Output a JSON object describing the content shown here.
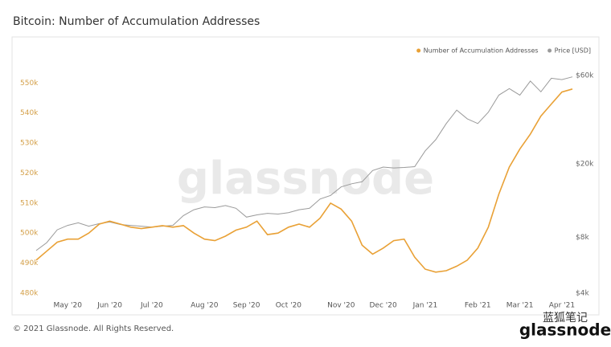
{
  "chart_data": {
    "type": "line",
    "title": "Bitcoin: Number of Accumulation Addresses",
    "footer": "© 2021 Glassnode. All Rights Reserved.",
    "watermark": "glassnode",
    "logo": "glassnode",
    "logo_caption": "蓝狐笔记",
    "legend_position": "top-right",
    "grid": false,
    "categories": [
      null,
      null,
      null,
      "May '20",
      null,
      null,
      null,
      "Jun '20",
      null,
      null,
      null,
      "Jul '20",
      null,
      null,
      null,
      null,
      "Aug '20",
      null,
      null,
      null,
      "Sep '20",
      null,
      null,
      null,
      "Oct '20",
      null,
      null,
      null,
      null,
      "Nov '20",
      null,
      null,
      null,
      "Dec '20",
      null,
      null,
      null,
      "Jan '21",
      null,
      null,
      null,
      null,
      "Feb '21",
      null,
      null,
      null,
      "Mar '21",
      null,
      null,
      null,
      "Apr '21",
      null
    ],
    "series": [
      {
        "name": "Number of Accumulation Addresses",
        "color": "#e9a136",
        "axis": "y",
        "values": [
          491000,
          494000,
          497000,
          498000,
          498000,
          500000,
          503000,
          504000,
          503000,
          502000,
          501500,
          502000,
          502500,
          502000,
          502500,
          500000,
          498000,
          497500,
          499000,
          501000,
          502000,
          504000,
          499500,
          500000,
          502000,
          503000,
          502000,
          505000,
          510000,
          508000,
          504000,
          496000,
          493000,
          495000,
          497500,
          498000,
          492000,
          488000,
          487000,
          487500,
          489000,
          491000,
          495000,
          502000,
          513000,
          522000,
          528000,
          533000,
          539000,
          543000,
          547000,
          548000
        ]
      },
      {
        "name": "Price [USD]",
        "color": "#9a9a9a",
        "axis": "y2",
        "values": [
          6800,
          7500,
          8800,
          9300,
          9600,
          9200,
          9500,
          9700,
          9400,
          9300,
          9200,
          9100,
          9200,
          9300,
          10500,
          11300,
          11700,
          11600,
          11900,
          11500,
          10300,
          10600,
          10800,
          10700,
          10900,
          11300,
          11500,
          12900,
          13500,
          15000,
          15600,
          16000,
          18400,
          19200,
          19000,
          19100,
          19300,
          23500,
          27000,
          33000,
          39000,
          35000,
          33000,
          38000,
          47000,
          51000,
          47000,
          56000,
          49000,
          58000,
          57000,
          59000
        ]
      }
    ],
    "ylim": [
      480000,
      552500
    ],
    "yticks": [
      {
        "value": 480000,
        "label": "480k"
      },
      {
        "value": 490000,
        "label": "490k"
      },
      {
        "value": 500000,
        "label": "500k"
      },
      {
        "value": 510000,
        "label": "510k"
      },
      {
        "value": 520000,
        "label": "520k"
      },
      {
        "value": 530000,
        "label": "530k"
      },
      {
        "value": 540000,
        "label": "540k"
      },
      {
        "value": 550000,
        "label": "550k"
      }
    ],
    "y2lim": [
      4000,
      60000
    ],
    "y2scale": "log",
    "y2ticks": [
      {
        "value": 4000,
        "label": "$4k"
      },
      {
        "value": 8000,
        "label": "$8k"
      },
      {
        "value": 20000,
        "label": "$20k"
      },
      {
        "value": 60000,
        "label": "$60k"
      }
    ]
  }
}
